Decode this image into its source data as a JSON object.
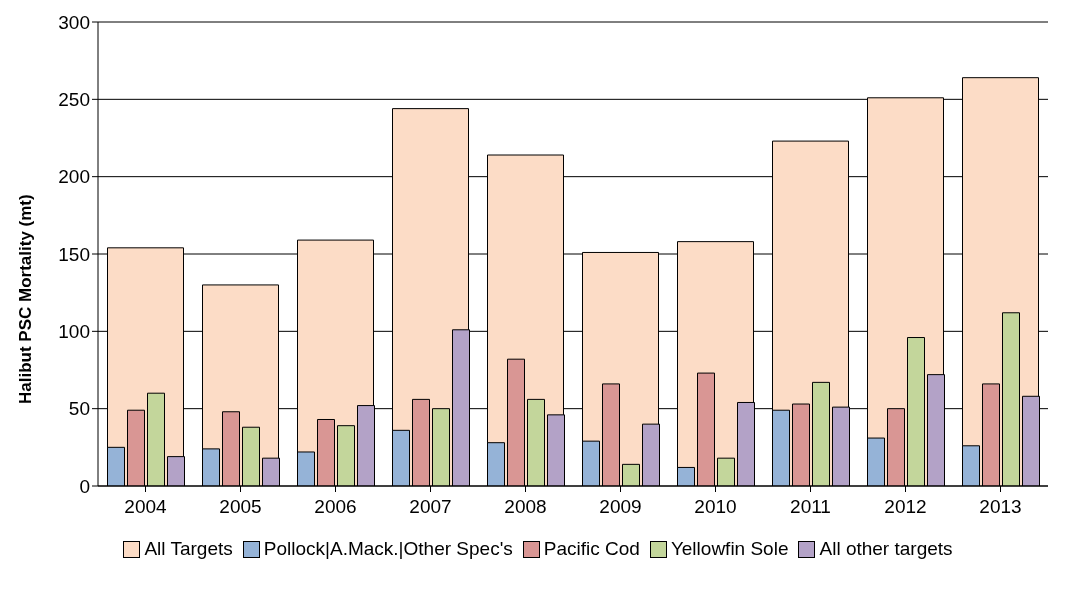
{
  "chart_data": {
    "type": "bar",
    "ylabel": "Halibut PSC Mortality (mt)",
    "categories": [
      "2004",
      "2005",
      "2006",
      "2007",
      "2008",
      "2009",
      "2010",
      "2011",
      "2012",
      "2013"
    ],
    "series": [
      {
        "name": "All Targets",
        "color": "#fcdcc6",
        "values": [
          154,
          130,
          159,
          244,
          214,
          151,
          158,
          223,
          251,
          264
        ]
      },
      {
        "name": "Pollock|A.Mack.|Other Spec's",
        "color": "#95b3d7",
        "values": [
          25,
          24,
          22,
          36,
          28,
          29,
          12,
          49,
          31,
          26
        ]
      },
      {
        "name": "Pacific Cod",
        "color": "#d99694",
        "values": [
          49,
          48,
          43,
          56,
          82,
          66,
          73,
          53,
          50,
          66
        ]
      },
      {
        "name": "Yellowfin Sole",
        "color": "#c3d69b",
        "values": [
          60,
          38,
          39,
          50,
          56,
          14,
          18,
          67,
          96,
          112
        ]
      },
      {
        "name": "All other targets",
        "color": "#b3a2c7",
        "values": [
          19,
          18,
          52,
          101,
          46,
          40,
          54,
          51,
          72,
          58
        ]
      }
    ],
    "ylim": [
      0,
      300
    ],
    "yticks": [
      0,
      50,
      100,
      150,
      200,
      250,
      300
    ],
    "grid": "y",
    "legend": "bottom"
  }
}
